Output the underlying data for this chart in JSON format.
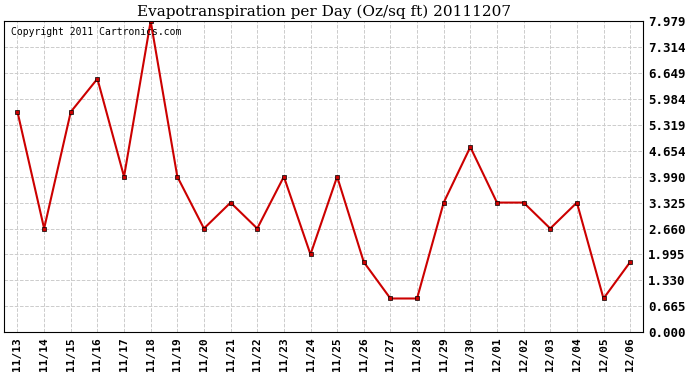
{
  "title": "Evapotranspiration per Day (Oz/sq ft) 20111207",
  "copyright_text": "Copyright 2011 Cartronics.com",
  "dates": [
    "11/13",
    "11/14",
    "11/15",
    "11/16",
    "11/17",
    "11/18",
    "11/19",
    "11/20",
    "11/21",
    "11/22",
    "11/23",
    "11/24",
    "11/25",
    "11/26",
    "11/27",
    "11/28",
    "11/29",
    "11/30",
    "12/01",
    "12/02",
    "12/03",
    "12/04",
    "12/05",
    "12/06"
  ],
  "values": [
    5.65,
    2.66,
    5.65,
    6.5,
    3.99,
    7.979,
    3.99,
    2.66,
    3.325,
    2.66,
    3.99,
    1.995,
    3.99,
    1.8,
    0.865,
    0.865,
    3.325,
    4.75,
    3.325,
    3.325,
    2.66,
    3.325,
    0.865,
    1.8
  ],
  "line_color": "#cc0000",
  "marker_color": "#cc0000",
  "bg_color": "#ffffff",
  "grid_color": "#cccccc",
  "yticks": [
    0.0,
    0.665,
    1.33,
    1.995,
    2.66,
    3.325,
    3.99,
    4.654,
    5.319,
    5.984,
    6.649,
    7.314,
    7.979
  ],
  "ylim": [
    0.0,
    7.979
  ],
  "title_fontsize": 11,
  "copyright_fontsize": 7,
  "tick_fontsize": 9,
  "xtick_fontsize": 8
}
